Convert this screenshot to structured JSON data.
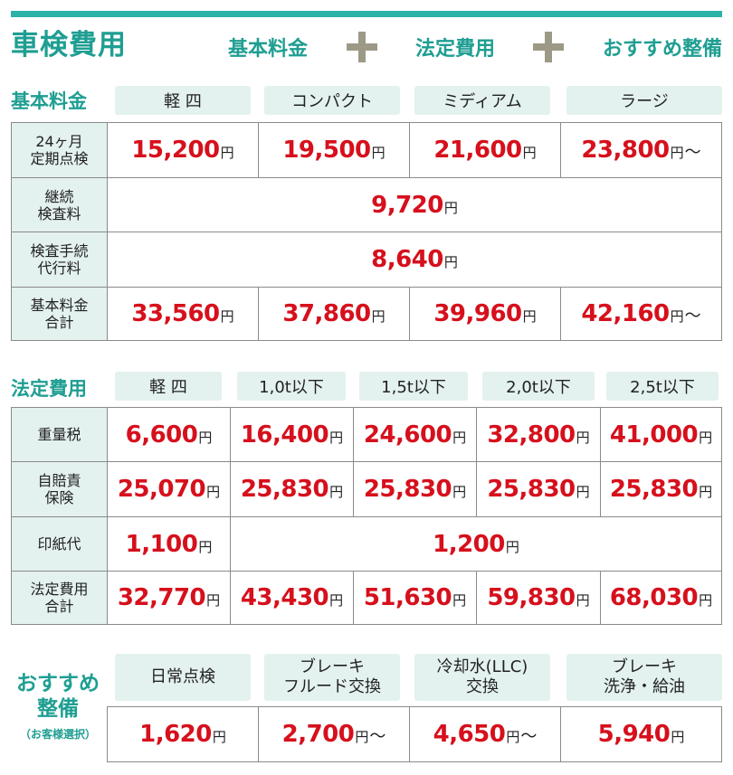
{
  "header": {
    "title": "車検費用",
    "terms": [
      "基本料金",
      "法定費用",
      "おすすめ整備"
    ]
  },
  "yen": "円",
  "tilde": "～",
  "basic": {
    "label": "基本料金",
    "columns": [
      "軽 四",
      "コンパクト",
      "ミディアム",
      "ラージ"
    ],
    "rows": [
      {
        "head": [
          "24ヶ月",
          "定期点検"
        ],
        "values": [
          "15,200",
          "19,500",
          "21,600",
          "23,800"
        ],
        "last_suffix": "～"
      },
      {
        "head": [
          "継続",
          "検査料"
        ],
        "merged": "9,720"
      },
      {
        "head": [
          "検査手続",
          "代行料"
        ],
        "merged": "8,640"
      },
      {
        "head": [
          "基本料金",
          "合計"
        ],
        "values": [
          "33,560",
          "37,860",
          "39,960",
          "42,160"
        ],
        "last_suffix": "～"
      }
    ]
  },
  "legal": {
    "label": "法定費用",
    "columns": [
      "軽 四",
      "1,0t以下",
      "1,5t以下",
      "2,0t以下",
      "2,5t以下"
    ],
    "rows": [
      {
        "head": [
          "重量税"
        ],
        "values": [
          "6,600",
          "16,400",
          "24,600",
          "32,800",
          "41,000"
        ]
      },
      {
        "head": [
          "自賠責",
          "保険"
        ],
        "values": [
          "25,070",
          "25,830",
          "25,830",
          "25,830",
          "25,830"
        ]
      },
      {
        "head": [
          "印紙代"
        ],
        "first": "1,100",
        "merged": "1,200"
      },
      {
        "head": [
          "法定費用",
          "合計"
        ],
        "values": [
          "32,770",
          "43,430",
          "51,630",
          "59,830",
          "68,030"
        ]
      }
    ]
  },
  "recommended": {
    "label_lines": [
      "おすすめ",
      "整備"
    ],
    "note": "（お客様選択）",
    "items": [
      {
        "name": [
          "日常点検"
        ],
        "price": "1,620",
        "suffix": ""
      },
      {
        "name": [
          "ブレーキ",
          "フルード交換"
        ],
        "price": "2,700",
        "suffix": "～"
      },
      {
        "name": [
          "冷却水(LLC)",
          "交換"
        ],
        "price": "4,650",
        "suffix": "～"
      },
      {
        "name": [
          "ブレーキ",
          "洗浄・給油"
        ],
        "price": "5,940",
        "suffix": ""
      }
    ]
  }
}
